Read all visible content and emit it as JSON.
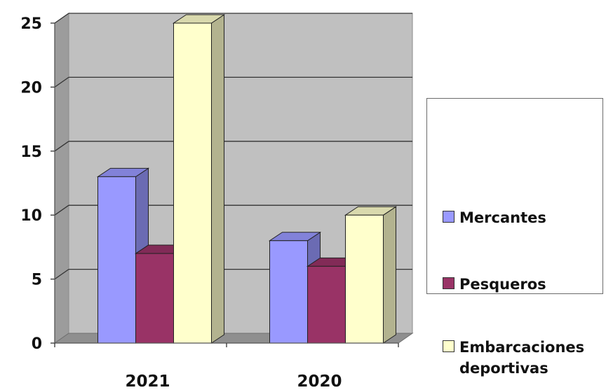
{
  "chart_data": {
    "type": "bar",
    "style": "3d-clustered-column",
    "title": "",
    "xlabel": "",
    "ylabel": "",
    "categories": [
      "2021",
      "2020"
    ],
    "series": [
      {
        "name": "Mercantes",
        "values": [
          13,
          8
        ],
        "color": "#9999ff"
      },
      {
        "name": "Pesqueros",
        "values": [
          7,
          6
        ],
        "color": "#993366"
      },
      {
        "name": "Embarcaciones deportivas",
        "name_lines": [
          "Embarcaciones",
          "deportivas"
        ],
        "values": [
          25,
          10
        ],
        "color": "#ffffcc"
      }
    ],
    "yticks": [
      "0",
      "5",
      "10",
      "15",
      "20",
      "25"
    ],
    "ylim": [
      0,
      25
    ],
    "grid": true,
    "plot_background": "#c0c0c0",
    "legend": "right"
  }
}
